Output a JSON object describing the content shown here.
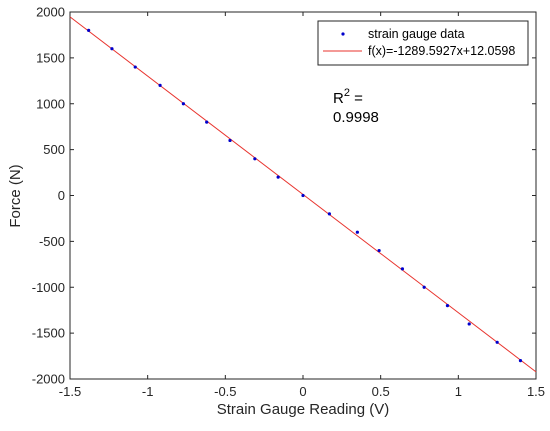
{
  "chart_data": {
    "type": "scatter",
    "xlabel": "Strain Gauge Reading (V)",
    "ylabel": "Force (N)",
    "xlim": [
      -1.5,
      1.5
    ],
    "ylim": [
      -2000,
      2000
    ],
    "xticks": [
      -1.5,
      -1,
      -0.5,
      0,
      0.5,
      1,
      1.5
    ],
    "yticks": [
      -2000,
      -1500,
      -1000,
      -500,
      0,
      500,
      1000,
      1500,
      2000
    ],
    "xtick_labels": [
      "-1.5",
      "-1",
      "-0.5",
      "0",
      "0.5",
      "1",
      "1.5"
    ],
    "ytick_labels": [
      "-2000",
      "-1500",
      "-1000",
      "-500",
      "0",
      "500",
      "1000",
      "1500",
      "2000"
    ],
    "grid": false,
    "legend_position": "top-right",
    "series": [
      {
        "name": "strain gauge data",
        "kind": "points",
        "color": "#0000cc",
        "x": [
          -1.38,
          -1.23,
          -1.08,
          -0.92,
          -0.77,
          -0.62,
          -0.47,
          -0.31,
          -0.16,
          0.0,
          0.17,
          0.35,
          0.49,
          0.64,
          0.78,
          0.93,
          1.07,
          1.25,
          1.4
        ],
        "y": [
          1800,
          1600,
          1400,
          1200,
          1000,
          800,
          600,
          400,
          200,
          0,
          -200,
          -400,
          -600,
          -800,
          -1000,
          -1200,
          -1400,
          -1600,
          -1800
        ]
      },
      {
        "name": "f(x)=-1289.5927x+12.0598",
        "kind": "line",
        "color": "#e8332d",
        "slope": -1289.5927,
        "intercept": 12.0598,
        "x_range": [
          -1.5,
          1.5
        ]
      }
    ],
    "annotation": {
      "r_label": "R",
      "r_sup": "2",
      "r_equals": " =",
      "r_value": "0.9998"
    }
  }
}
